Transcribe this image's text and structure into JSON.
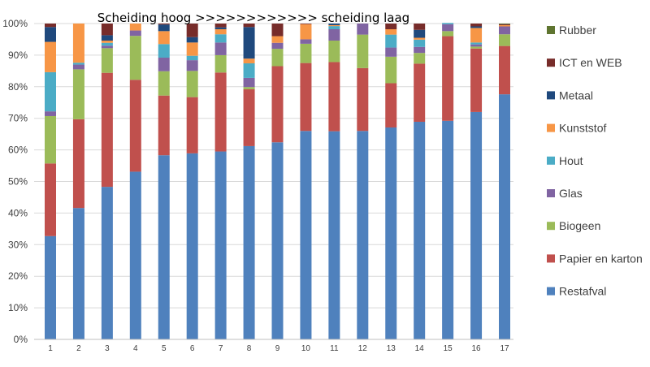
{
  "chart_data": {
    "type": "bar",
    "stacked": true,
    "title": "Scheiding hoog >>>>>>>>>>>> scheiding laag",
    "xlabel": "",
    "ylabel": "",
    "ylim": [
      0,
      100
    ],
    "y_ticks": [
      "0%",
      "10%",
      "20%",
      "30%",
      "40%",
      "50%",
      "60%",
      "70%",
      "80%",
      "90%",
      "100%"
    ],
    "grid": true,
    "legend_position": "right",
    "categories": [
      "1",
      "2",
      "3",
      "4",
      "5",
      "6",
      "7",
      "8",
      "9",
      "10",
      "11",
      "12",
      "13",
      "14",
      "15",
      "16",
      "17"
    ],
    "series": [
      {
        "name": "Restafval",
        "color": "#4f81bd",
        "values": [
          32.7,
          41.6,
          48.3,
          53.1,
          58.3,
          58.9,
          59.5,
          61.2,
          62.4,
          66.0,
          65.9,
          66.0,
          67.1,
          68.9,
          69.2,
          72.0,
          77.6
        ]
      },
      {
        "name": "Papier en karton",
        "color": "#c0504d",
        "values": [
          23.0,
          28.1,
          36.1,
          29.1,
          18.9,
          17.8,
          25.0,
          18.0,
          24.1,
          21.5,
          21.9,
          19.9,
          14.0,
          18.4,
          26.8,
          20.1,
          15.3
        ]
      },
      {
        "name": "Biogeen",
        "color": "#9bbb59",
        "values": [
          15.0,
          15.8,
          7.8,
          13.9,
          7.7,
          8.3,
          5.5,
          0.7,
          5.5,
          6.1,
          6.8,
          10.6,
          8.4,
          3.4,
          1.6,
          0.6,
          3.7
        ]
      },
      {
        "name": "Glas",
        "color": "#8064a2",
        "values": [
          1.5,
          1.5,
          0.8,
          1.7,
          4.3,
          3.4,
          4.0,
          2.9,
          1.9,
          1.4,
          3.6,
          3.5,
          2.9,
          1.9,
          2.2,
          0.7,
          2.5
        ]
      },
      {
        "name": "Hout",
        "color": "#4bacc6",
        "values": [
          12.4,
          0.6,
          0.9,
          0.0,
          4.3,
          1.4,
          2.6,
          4.6,
          0.0,
          0.0,
          1.0,
          0.0,
          4.1,
          2.3,
          0.4,
          0.6,
          0.0
        ]
      },
      {
        "name": "Kunststof",
        "color": "#f79646",
        "values": [
          9.6,
          12.4,
          0.7,
          2.2,
          4.1,
          4.2,
          1.6,
          1.5,
          2.1,
          4.8,
          0.3,
          0.0,
          1.7,
          0.6,
          0.0,
          4.6,
          0.4
        ]
      },
      {
        "name": "Metaal",
        "color": "#1f497d",
        "values": [
          4.7,
          0.0,
          1.7,
          0.0,
          2.1,
          1.7,
          0.6,
          10.0,
          0.0,
          0.0,
          0.5,
          0.0,
          0.0,
          2.5,
          0.0,
          0.5,
          0.0
        ]
      },
      {
        "name": "ICT en WEB",
        "color": "#772c2a",
        "values": [
          1.1,
          0.0,
          3.7,
          0.0,
          0.3,
          4.3,
          1.2,
          1.1,
          4.0,
          0.2,
          0.0,
          0.0,
          1.8,
          2.0,
          0.0,
          0.9,
          0.3
        ]
      },
      {
        "name": "Rubber",
        "color": "#5f7530",
        "values": [
          0.0,
          0.0,
          0.0,
          0.0,
          0.0,
          0.0,
          0.0,
          0.0,
          0.0,
          0.0,
          0.0,
          0.0,
          0.0,
          0.0,
          0.0,
          0.0,
          0.2
        ]
      }
    ],
    "legend_order": [
      "Rubber",
      "ICT en WEB",
      "Metaal",
      "Kunststof",
      "Hout",
      "Glas",
      "Biogeen",
      "Papier en karton",
      "Restafval"
    ]
  }
}
